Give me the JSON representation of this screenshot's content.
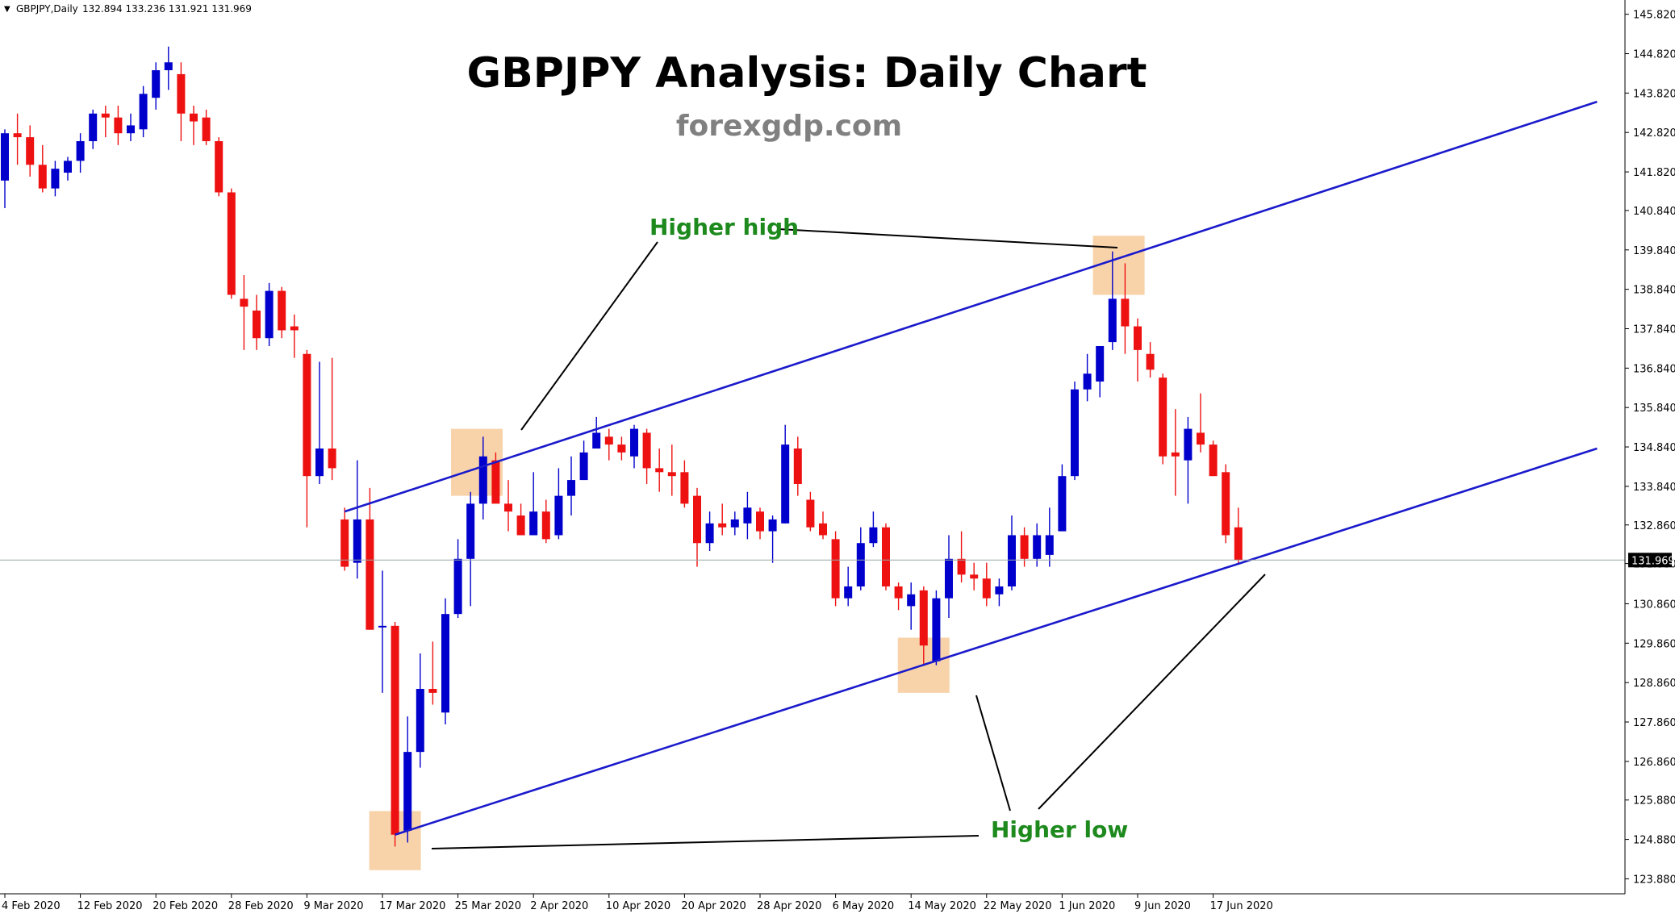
{
  "header": {
    "symbol_info": "GBPJPY,Daily",
    "ohlc": "132.894 133.236 131.921 131.969"
  },
  "title": "GBPJPY Analysis: Daily Chart",
  "subtitle": "forexgdp.com",
  "annotations": {
    "higher_high": "Higher high",
    "higher_low": "Higher low"
  },
  "colors": {
    "bull": "#0000cc",
    "bear": "#ee1111",
    "channel": "#1a1acc",
    "highlight": "#f5c48e",
    "label_green": "#1e8a1e",
    "grid_line": "#9aa7a7",
    "price_tag_bg": "#000000"
  },
  "chart_data": {
    "type": "candlestick",
    "instrument": "GBPJPY",
    "timeframe": "Daily",
    "ylim": [
      123.5,
      146.1
    ],
    "price_ticks": [
      "145.820",
      "144.820",
      "143.820",
      "142.820",
      "141.820",
      "140.840",
      "139.840",
      "138.840",
      "137.840",
      "136.840",
      "135.840",
      "134.840",
      "133.840",
      "132.860",
      "131.880",
      "130.860",
      "129.860",
      "128.860",
      "127.860",
      "126.860",
      "125.880",
      "124.880",
      "123.880"
    ],
    "current_price": "131.969",
    "date_labels": [
      "4 Feb 2020",
      "12 Feb 2020",
      "20 Feb 2020",
      "28 Feb 2020",
      "9 Mar 2020",
      "17 Mar 2020",
      "25 Mar 2020",
      "2 Apr 2020",
      "10 Apr 2020",
      "20 Apr 2020",
      "28 Apr 2020",
      "6 May 2020",
      "14 May 2020",
      "22 May 2020",
      "1 Jun 2020",
      "9 Jun 2020",
      "17 Jun 2020"
    ],
    "date_label_bars": [
      0,
      6,
      12,
      18,
      24,
      30,
      36,
      42,
      48,
      54,
      60,
      66,
      72,
      78,
      84,
      90,
      96
    ],
    "candles": [
      {
        "o": 141.6,
        "h": 142.9,
        "l": 140.9,
        "c": 142.8
      },
      {
        "o": 142.8,
        "h": 143.3,
        "l": 142.0,
        "c": 142.7
      },
      {
        "o": 142.7,
        "h": 143.0,
        "l": 141.7,
        "c": 142.0
      },
      {
        "o": 142.0,
        "h": 142.5,
        "l": 141.3,
        "c": 141.4
      },
      {
        "o": 141.4,
        "h": 142.1,
        "l": 141.2,
        "c": 141.9
      },
      {
        "o": 141.8,
        "h": 142.2,
        "l": 141.6,
        "c": 142.1
      },
      {
        "o": 142.1,
        "h": 142.8,
        "l": 141.8,
        "c": 142.6
      },
      {
        "o": 142.6,
        "h": 143.4,
        "l": 142.4,
        "c": 143.3
      },
      {
        "o": 143.3,
        "h": 143.5,
        "l": 142.7,
        "c": 143.2
      },
      {
        "o": 143.2,
        "h": 143.5,
        "l": 142.5,
        "c": 142.8
      },
      {
        "o": 142.8,
        "h": 143.3,
        "l": 142.6,
        "c": 143.0
      },
      {
        "o": 142.9,
        "h": 144.0,
        "l": 142.7,
        "c": 143.8
      },
      {
        "o": 143.7,
        "h": 144.6,
        "l": 143.4,
        "c": 144.4
      },
      {
        "o": 144.4,
        "h": 145.0,
        "l": 143.9,
        "c": 144.6
      },
      {
        "o": 144.3,
        "h": 144.6,
        "l": 142.6,
        "c": 143.3
      },
      {
        "o": 143.3,
        "h": 143.5,
        "l": 142.5,
        "c": 143.1
      },
      {
        "o": 143.2,
        "h": 143.4,
        "l": 142.5,
        "c": 142.6
      },
      {
        "o": 142.6,
        "h": 142.7,
        "l": 141.2,
        "c": 141.3
      },
      {
        "o": 141.3,
        "h": 141.4,
        "l": 138.6,
        "c": 138.7
      },
      {
        "o": 138.6,
        "h": 139.2,
        "l": 137.3,
        "c": 138.4
      },
      {
        "o": 138.3,
        "h": 138.7,
        "l": 137.3,
        "c": 137.6
      },
      {
        "o": 137.6,
        "h": 139.0,
        "l": 137.4,
        "c": 138.8
      },
      {
        "o": 138.8,
        "h": 138.9,
        "l": 137.6,
        "c": 137.8
      },
      {
        "o": 137.9,
        "h": 138.2,
        "l": 137.1,
        "c": 137.8
      },
      {
        "o": 137.2,
        "h": 137.3,
        "l": 132.8,
        "c": 134.1
      },
      {
        "o": 134.1,
        "h": 137.0,
        "l": 133.9,
        "c": 134.8
      },
      {
        "o": 134.8,
        "h": 137.1,
        "l": 134.0,
        "c": 134.3
      },
      {
        "o": 133.0,
        "h": 133.3,
        "l": 131.7,
        "c": 131.8
      },
      {
        "o": 131.9,
        "h": 134.5,
        "l": 131.5,
        "c": 133.0
      },
      {
        "o": 133.0,
        "h": 133.8,
        "l": 130.2,
        "c": 130.2
      },
      {
        "o": 130.3,
        "h": 131.7,
        "l": 128.6,
        "c": 130.3
      },
      {
        "o": 130.3,
        "h": 130.4,
        "l": 124.7,
        "c": 125.0
      },
      {
        "o": 125.1,
        "h": 128.0,
        "l": 124.8,
        "c": 127.1
      },
      {
        "o": 127.1,
        "h": 129.6,
        "l": 126.7,
        "c": 128.7
      },
      {
        "o": 128.7,
        "h": 129.9,
        "l": 128.3,
        "c": 128.6
      },
      {
        "o": 128.1,
        "h": 131.0,
        "l": 127.8,
        "c": 130.6
      },
      {
        "o": 130.6,
        "h": 132.5,
        "l": 130.5,
        "c": 132.0
      },
      {
        "o": 132.0,
        "h": 133.7,
        "l": 130.8,
        "c": 133.4
      },
      {
        "o": 133.4,
        "h": 135.1,
        "l": 133.0,
        "c": 134.6
      },
      {
        "o": 134.5,
        "h": 134.7,
        "l": 133.5,
        "c": 133.4
      },
      {
        "o": 133.4,
        "h": 134.0,
        "l": 132.7,
        "c": 133.2
      },
      {
        "o": 133.1,
        "h": 133.4,
        "l": 132.6,
        "c": 132.6
      },
      {
        "o": 132.6,
        "h": 134.2,
        "l": 132.6,
        "c": 133.2
      },
      {
        "o": 133.2,
        "h": 133.5,
        "l": 132.4,
        "c": 132.5
      },
      {
        "o": 132.6,
        "h": 134.3,
        "l": 132.5,
        "c": 133.6
      },
      {
        "o": 133.6,
        "h": 134.6,
        "l": 133.1,
        "c": 134.0
      },
      {
        "o": 134.0,
        "h": 135.0,
        "l": 134.0,
        "c": 134.7
      },
      {
        "o": 134.8,
        "h": 135.6,
        "l": 134.8,
        "c": 135.2
      },
      {
        "o": 135.1,
        "h": 135.3,
        "l": 134.5,
        "c": 134.9
      },
      {
        "o": 134.9,
        "h": 135.1,
        "l": 134.5,
        "c": 134.7
      },
      {
        "o": 134.6,
        "h": 135.4,
        "l": 134.3,
        "c": 135.3
      },
      {
        "o": 135.2,
        "h": 135.3,
        "l": 133.9,
        "c": 134.3
      },
      {
        "o": 134.3,
        "h": 134.8,
        "l": 133.7,
        "c": 134.2
      },
      {
        "o": 134.2,
        "h": 134.9,
        "l": 133.6,
        "c": 134.1
      },
      {
        "o": 134.2,
        "h": 134.5,
        "l": 133.3,
        "c": 133.4
      },
      {
        "o": 133.6,
        "h": 133.8,
        "l": 131.8,
        "c": 132.4
      },
      {
        "o": 132.4,
        "h": 133.2,
        "l": 132.2,
        "c": 132.9
      },
      {
        "o": 132.9,
        "h": 133.4,
        "l": 132.6,
        "c": 132.8
      },
      {
        "o": 132.8,
        "h": 133.2,
        "l": 132.6,
        "c": 133.0
      },
      {
        "o": 132.9,
        "h": 133.7,
        "l": 132.5,
        "c": 133.3
      },
      {
        "o": 133.2,
        "h": 133.3,
        "l": 132.5,
        "c": 132.7
      },
      {
        "o": 132.7,
        "h": 133.1,
        "l": 131.9,
        "c": 133.0
      },
      {
        "o": 132.9,
        "h": 135.4,
        "l": 132.9,
        "c": 134.9
      },
      {
        "o": 134.8,
        "h": 135.1,
        "l": 133.6,
        "c": 133.9
      },
      {
        "o": 133.5,
        "h": 133.7,
        "l": 132.7,
        "c": 132.8
      },
      {
        "o": 132.9,
        "h": 133.2,
        "l": 132.5,
        "c": 132.6
      },
      {
        "o": 132.5,
        "h": 132.7,
        "l": 130.8,
        "c": 131.0
      },
      {
        "o": 131.0,
        "h": 131.8,
        "l": 130.8,
        "c": 131.3
      },
      {
        "o": 131.3,
        "h": 132.8,
        "l": 131.2,
        "c": 132.4
      },
      {
        "o": 132.4,
        "h": 133.2,
        "l": 132.3,
        "c": 132.8
      },
      {
        "o": 132.8,
        "h": 132.9,
        "l": 131.2,
        "c": 131.3
      },
      {
        "o": 131.3,
        "h": 131.4,
        "l": 130.7,
        "c": 131.0
      },
      {
        "o": 130.8,
        "h": 131.4,
        "l": 130.2,
        "c": 131.1
      },
      {
        "o": 131.2,
        "h": 131.3,
        "l": 129.3,
        "c": 129.8
      },
      {
        "o": 129.4,
        "h": 131.2,
        "l": 129.3,
        "c": 131.0
      },
      {
        "o": 131.0,
        "h": 132.6,
        "l": 130.5,
        "c": 132.0
      },
      {
        "o": 132.0,
        "h": 132.7,
        "l": 131.4,
        "c": 131.6
      },
      {
        "o": 131.6,
        "h": 131.9,
        "l": 131.2,
        "c": 131.5
      },
      {
        "o": 131.5,
        "h": 131.9,
        "l": 130.8,
        "c": 131.0
      },
      {
        "o": 131.1,
        "h": 131.5,
        "l": 130.8,
        "c": 131.3
      },
      {
        "o": 131.3,
        "h": 133.1,
        "l": 131.2,
        "c": 132.6
      },
      {
        "o": 132.6,
        "h": 132.8,
        "l": 131.8,
        "c": 132.0
      },
      {
        "o": 132.0,
        "h": 132.9,
        "l": 131.8,
        "c": 132.6
      },
      {
        "o": 132.1,
        "h": 133.3,
        "l": 131.8,
        "c": 132.6
      },
      {
        "o": 132.7,
        "h": 134.4,
        "l": 132.7,
        "c": 134.1
      },
      {
        "o": 134.1,
        "h": 136.5,
        "l": 134.0,
        "c": 136.3
      },
      {
        "o": 136.3,
        "h": 137.2,
        "l": 136.0,
        "c": 136.7
      },
      {
        "o": 136.5,
        "h": 137.4,
        "l": 136.1,
        "c": 137.4
      },
      {
        "o": 137.5,
        "h": 139.8,
        "l": 137.3,
        "c": 138.6
      },
      {
        "o": 138.6,
        "h": 139.5,
        "l": 137.2,
        "c": 137.9
      },
      {
        "o": 137.9,
        "h": 138.1,
        "l": 136.5,
        "c": 137.3
      },
      {
        "o": 137.2,
        "h": 137.5,
        "l": 136.6,
        "c": 136.8
      },
      {
        "o": 136.6,
        "h": 136.7,
        "l": 134.4,
        "c": 134.6
      },
      {
        "o": 134.7,
        "h": 135.8,
        "l": 133.6,
        "c": 134.6
      },
      {
        "o": 134.5,
        "h": 135.6,
        "l": 133.4,
        "c": 135.3
      },
      {
        "o": 135.2,
        "h": 136.2,
        "l": 134.7,
        "c": 134.9
      },
      {
        "o": 134.9,
        "h": 135.0,
        "l": 134.1,
        "c": 134.1
      },
      {
        "o": 134.2,
        "h": 134.4,
        "l": 132.4,
        "c": 132.6
      },
      {
        "o": 132.8,
        "h": 133.3,
        "l": 131.9,
        "c": 131.97
      }
    ],
    "channel_upper": [
      {
        "bar": 27,
        "price": 133.2
      },
      {
        "bar": 126.5,
        "price": 143.6
      }
    ],
    "channel_lower": [
      {
        "bar": 31,
        "price": 125.0
      },
      {
        "bar": 126.5,
        "price": 134.8
      }
    ],
    "highlight_zones": [
      {
        "bar": 31,
        "price_top": 125.6,
        "price_bottom": 124.1
      },
      {
        "bar": 37.5,
        "price_top": 135.3,
        "price_bottom": 133.6
      },
      {
        "bar": 73,
        "price_top": 130.0,
        "price_bottom": 128.6
      },
      {
        "bar": 88.5,
        "price_top": 140.2,
        "price_bottom": 138.7
      }
    ]
  }
}
